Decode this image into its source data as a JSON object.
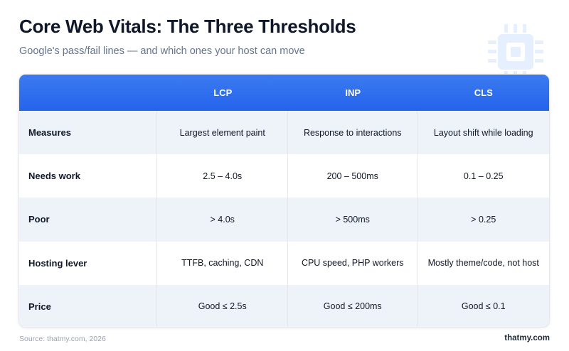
{
  "header": {
    "title": "Core Web Vitals: The Three Thresholds",
    "subtitle": "Google's pass/fail lines — and which ones your host can move"
  },
  "decoration": {
    "icon": "cpu-chip-icon",
    "color": "#3b82f6"
  },
  "table": {
    "columns": [
      "",
      "LCP",
      "INP",
      "CLS"
    ],
    "rows": [
      {
        "label": "Measures",
        "cells": [
          "Largest element paint",
          "Response to interactions",
          "Layout shift while loading"
        ]
      },
      {
        "label": "Needs work",
        "cells": [
          "2.5 – 4.0s",
          "200 – 500ms",
          "0.1 – 0.25"
        ]
      },
      {
        "label": "Poor",
        "cells": [
          "> 4.0s",
          "> 500ms",
          "> 0.25"
        ]
      },
      {
        "label": "Hosting lever",
        "cells": [
          "TTFB, caching, CDN",
          "CPU speed, PHP workers",
          "Mostly theme/code, not host"
        ]
      },
      {
        "label": "Price",
        "cells": [
          "Good ≤ 2.5s",
          "Good ≤ 200ms",
          "Good ≤ 0.1"
        ]
      }
    ],
    "header_color": "#2563eb",
    "stripe_color": "#eef3f9"
  },
  "footer": {
    "source": "Source: thatmy.com, 2026",
    "brand": "thatmy.com"
  }
}
